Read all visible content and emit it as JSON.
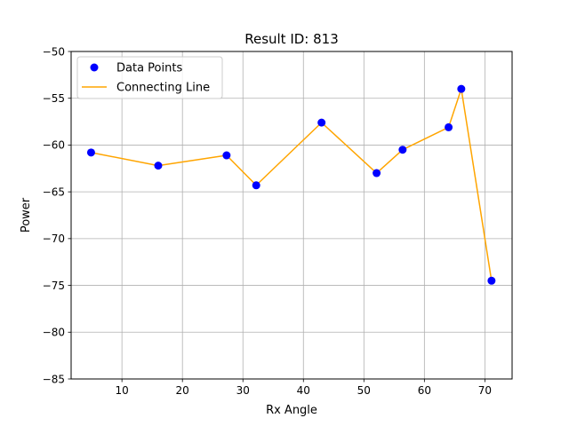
{
  "chart_data": {
    "type": "scatter",
    "title": "Result ID: 813",
    "xlabel": "Rx Angle",
    "ylabel": "Power",
    "xlim": [
      1.6,
      74.5
    ],
    "ylim": [
      -85,
      -50
    ],
    "xticks": [
      10,
      20,
      30,
      40,
      50,
      60,
      70
    ],
    "yticks": [
      -85,
      -80,
      -75,
      -70,
      -65,
      -60,
      -55,
      -50
    ],
    "grid": true,
    "legend_position": "top-left",
    "series": [
      {
        "name": "Data Points",
        "kind": "scatter",
        "color": "#0000ff",
        "points": [
          {
            "x": 4.9,
            "y": -60.8
          },
          {
            "x": 16.0,
            "y": -62.2
          },
          {
            "x": 27.3,
            "y": -61.1
          },
          {
            "x": 32.2,
            "y": -64.3
          },
          {
            "x": 43.0,
            "y": -57.6
          },
          {
            "x": 52.1,
            "y": -63.0
          },
          {
            "x": 56.4,
            "y": -60.5
          },
          {
            "x": 64.0,
            "y": -58.1
          },
          {
            "x": 66.1,
            "y": -54.0
          },
          {
            "x": 71.1,
            "y": -74.5
          }
        ]
      },
      {
        "name": "Connecting Line",
        "kind": "line",
        "color": "#ffa500"
      }
    ]
  }
}
